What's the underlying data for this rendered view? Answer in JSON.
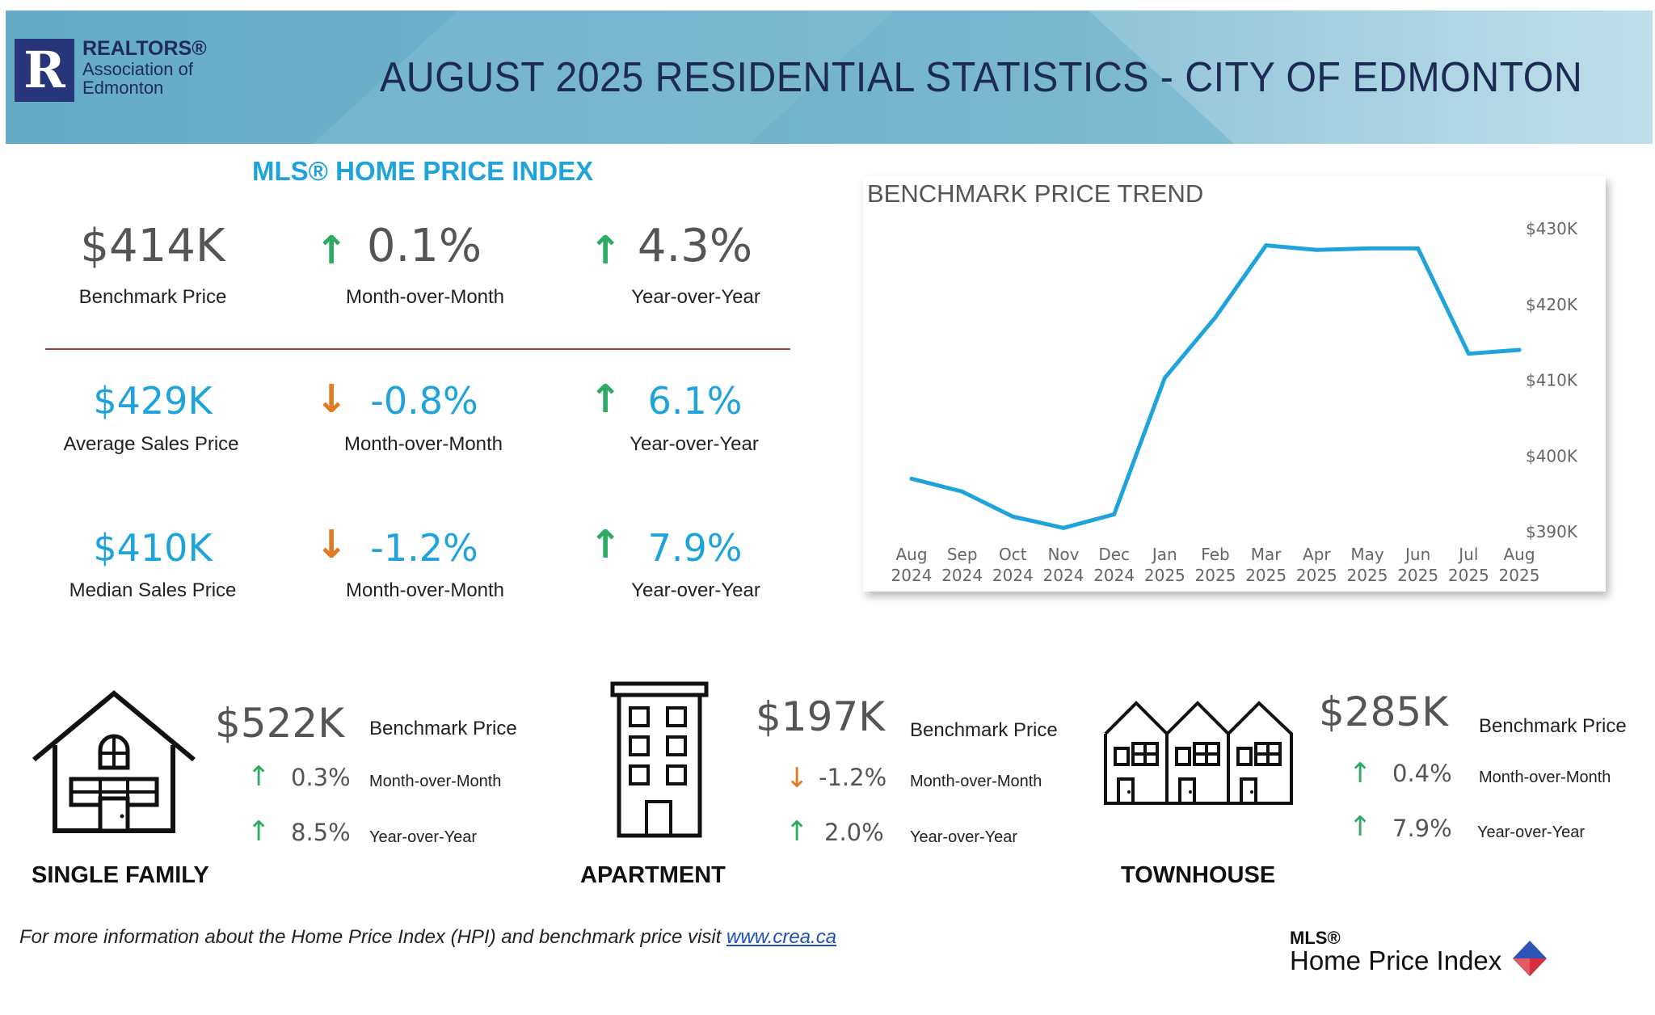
{
  "header": {
    "org_line1": "REALTORS®",
    "org_line2": "Association of",
    "org_line3": "Edmonton",
    "title": "AUGUST 2025 RESIDENTIAL STATISTICS - CITY OF EDMONTON"
  },
  "hpi": {
    "title": "MLS® HOME PRICE INDEX",
    "rows": [
      {
        "value": "$414K",
        "label": "Benchmark Price",
        "mom": "0.1%",
        "mom_label": "Month-over-Month",
        "mom_dir": "up",
        "yoy": "4.3%",
        "yoy_label": "Year-over-Year",
        "yoy_dir": "up"
      },
      {
        "value": "$429K",
        "label": "Average Sales Price",
        "mom": "-0.8%",
        "mom_label": "Month-over-Month",
        "mom_dir": "down",
        "yoy": "6.1%",
        "yoy_label": "Year-over-Year",
        "yoy_dir": "up"
      },
      {
        "value": "$410K",
        "label": "Median Sales Price",
        "mom": "-1.2%",
        "mom_label": "Month-over-Month",
        "mom_dir": "down",
        "yoy": "7.9%",
        "yoy_label": "Year-over-Year",
        "yoy_dir": "up"
      }
    ]
  },
  "chart_data": {
    "type": "line",
    "title": "BENCHMARK PRICE TREND",
    "categories": [
      [
        "Aug",
        "2024"
      ],
      [
        "Sep",
        "2024"
      ],
      [
        "Oct",
        "2024"
      ],
      [
        "Nov",
        "2024"
      ],
      [
        "Dec",
        "2024"
      ],
      [
        "Jan",
        "2025"
      ],
      [
        "Feb",
        "2025"
      ],
      [
        "Mar",
        "2025"
      ],
      [
        "Apr",
        "2025"
      ],
      [
        "May",
        "2025"
      ],
      [
        "Jun",
        "2025"
      ],
      [
        "Jul",
        "2025"
      ],
      [
        "Aug",
        "2025"
      ]
    ],
    "values": [
      397.0,
      395.3,
      392.0,
      390.5,
      392.3,
      410.3,
      418.3,
      427.8,
      427.2,
      427.4,
      427.4,
      413.5,
      414.0
    ],
    "ylim": [
      390,
      430
    ],
    "yticks": [
      390,
      400,
      410,
      420,
      430
    ],
    "ytick_labels": [
      "$390K",
      "$400K",
      "$410K",
      "$420K",
      "$430K"
    ],
    "line_color": "#1ea3da",
    "grid": false
  },
  "categories": [
    {
      "name": "SINGLE FAMILY",
      "price": "$522K",
      "price_label": "Benchmark Price",
      "mom": "0.3%",
      "mom_label": "Month-over-Month",
      "mom_dir": "up",
      "yoy": "8.5%",
      "yoy_label": "Year-over-Year",
      "yoy_dir": "up"
    },
    {
      "name": "APARTMENT",
      "price": "$197K",
      "price_label": "Benchmark Price",
      "mom": "-1.2%",
      "mom_label": "Month-over-Month",
      "mom_dir": "down",
      "yoy": "2.0%",
      "yoy_label": "Year-over-Year",
      "yoy_dir": "up"
    },
    {
      "name": "TOWNHOUSE",
      "price": "$285K",
      "price_label": "Benchmark Price",
      "mom": "0.4%",
      "mom_label": "Month-over-Month",
      "mom_dir": "up",
      "yoy": "7.9%",
      "yoy_label": "Year-over-Year",
      "yoy_dir": "up"
    }
  ],
  "footer": {
    "text": "For more information about the Home Price Index (HPI) and benchmark price visit ",
    "link": "www.crea.ca",
    "brand_line1": "MLS®",
    "brand_line2": "Home Price Index"
  },
  "colors": {
    "accent": "#1ea3da",
    "up": "#2eaa63",
    "down": "#e07b24",
    "title": "#1c2a55"
  }
}
